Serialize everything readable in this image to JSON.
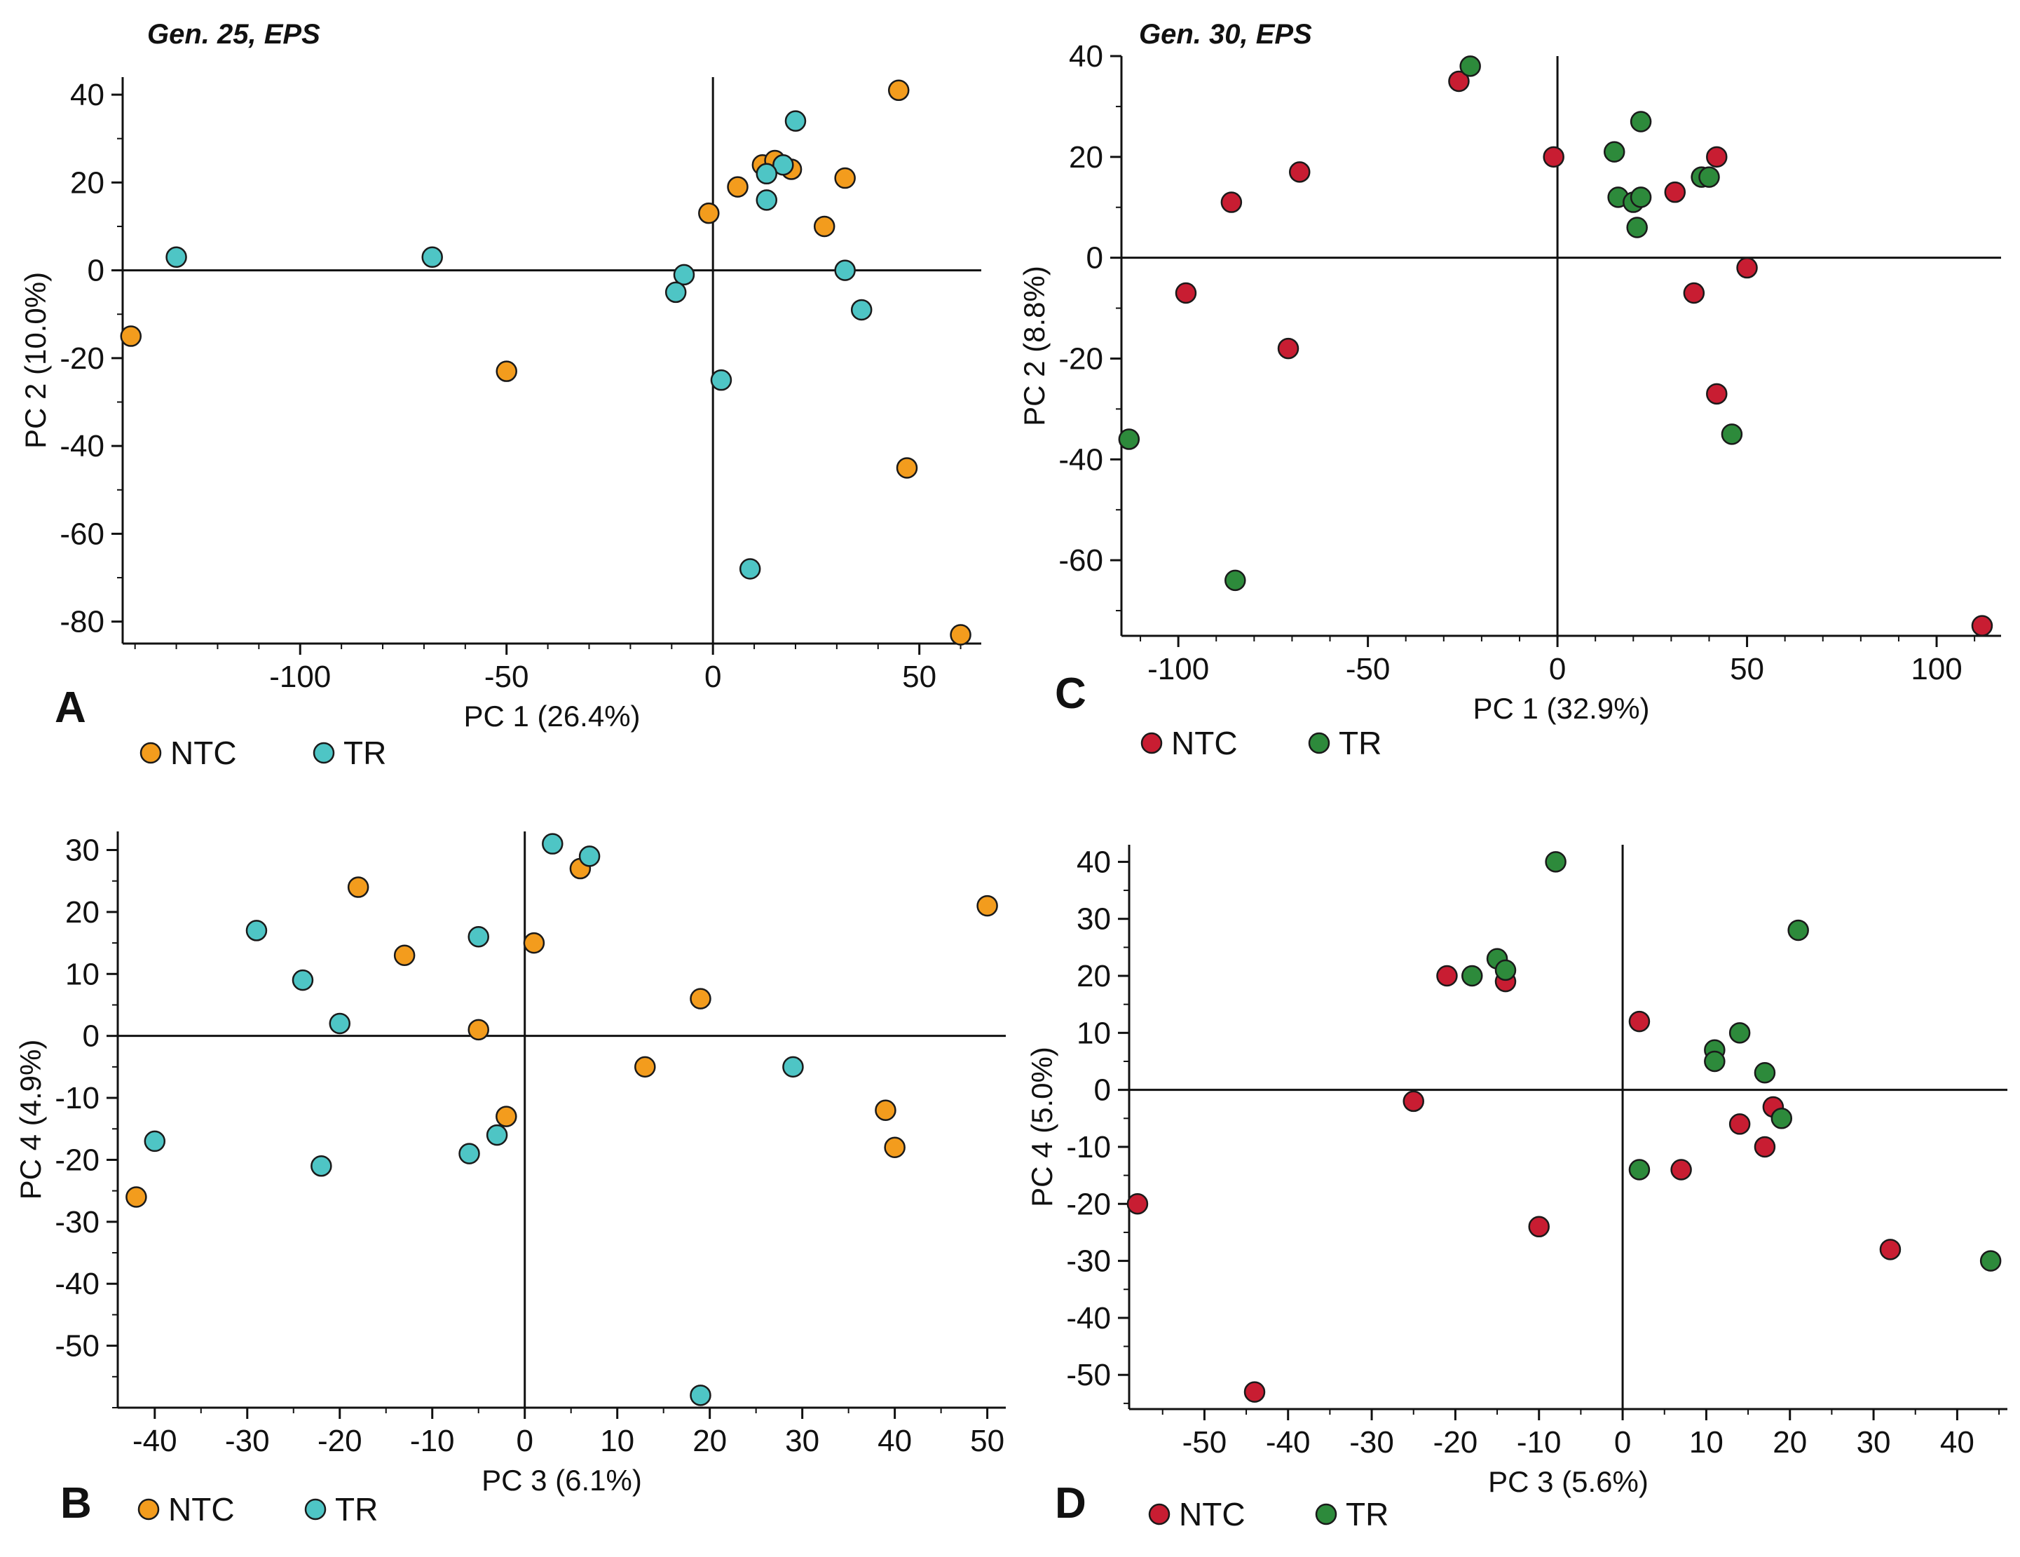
{
  "figure": {
    "panels": [
      "A",
      "B",
      "C",
      "D"
    ]
  },
  "chart_data": [
    {
      "id": "A",
      "type": "scatter",
      "title": "Gen. 25, EPS",
      "xlabel": "PC 1 (26.4%)",
      "ylabel": "PC 2 (10.0%)",
      "xlim": [
        -143,
        65
      ],
      "ylim": [
        -85,
        44
      ],
      "xticks": [
        -100,
        -50,
        0,
        50
      ],
      "yticks": [
        40,
        20,
        0,
        -20,
        -40,
        -60,
        -80
      ],
      "minor_step": 10,
      "grid": false,
      "legend_position": "bottom-left",
      "series": [
        {
          "name": "NTC",
          "color": "#f39c1d",
          "points": [
            [
              -141,
              -15
            ],
            [
              -50,
              -23
            ],
            [
              -1,
              13
            ],
            [
              6,
              19
            ],
            [
              12,
              24
            ],
            [
              15,
              25
            ],
            [
              19,
              23
            ],
            [
              32,
              21
            ],
            [
              27,
              10
            ],
            [
              45,
              41
            ],
            [
              47,
              -45
            ],
            [
              60,
              -83
            ]
          ]
        },
        {
          "name": "TR",
          "color": "#4ec5c5",
          "points": [
            [
              -130,
              3
            ],
            [
              -68,
              3
            ],
            [
              -7,
              -1
            ],
            [
              -9,
              -5
            ],
            [
              20,
              34
            ],
            [
              17,
              24
            ],
            [
              13,
              22
            ],
            [
              13,
              16
            ],
            [
              32,
              0
            ],
            [
              36,
              -9
            ],
            [
              2,
              -25
            ],
            [
              9,
              -68
            ]
          ]
        }
      ]
    },
    {
      "id": "B",
      "type": "scatter",
      "title": "",
      "xlabel": "PC 3 (6.1%)",
      "ylabel": "PC 4 (4.9%)",
      "xlim": [
        -44,
        52
      ],
      "ylim": [
        -60,
        33
      ],
      "xticks": [
        -40,
        -30,
        -20,
        -10,
        0,
        10,
        20,
        30,
        40,
        50
      ],
      "yticks": [
        30,
        20,
        10,
        0,
        -10,
        -20,
        -30,
        -40,
        -50
      ],
      "minor_step": 5,
      "grid": false,
      "legend_position": "bottom-left",
      "series": [
        {
          "name": "NTC",
          "color": "#f39c1d",
          "points": [
            [
              -18,
              24
            ],
            [
              -13,
              13
            ],
            [
              -5,
              1
            ],
            [
              1,
              15
            ],
            [
              6,
              27
            ],
            [
              19,
              6
            ],
            [
              13,
              -5
            ],
            [
              -2,
              -13
            ],
            [
              39,
              -12
            ],
            [
              40,
              -18
            ],
            [
              -42,
              -26
            ],
            [
              50,
              21
            ]
          ]
        },
        {
          "name": "TR",
          "color": "#4ec5c5",
          "points": [
            [
              -29,
              17
            ],
            [
              -24,
              9
            ],
            [
              -20,
              2
            ],
            [
              -5,
              16
            ],
            [
              3,
              31
            ],
            [
              7,
              29
            ],
            [
              -40,
              -17
            ],
            [
              -22,
              -21
            ],
            [
              -6,
              -19
            ],
            [
              -3,
              -16
            ],
            [
              29,
              -5
            ],
            [
              19,
              -58
            ]
          ]
        }
      ]
    },
    {
      "id": "C",
      "type": "scatter",
      "title": "Gen. 30, EPS",
      "xlabel": "PC 1 (32.9%)",
      "ylabel": "PC 2 (8.8%)",
      "xlim": [
        -115,
        117
      ],
      "ylim": [
        -75,
        40
      ],
      "xticks": [
        -100,
        -50,
        0,
        50,
        100
      ],
      "yticks": [
        40,
        20,
        0,
        -20,
        -40,
        -60
      ],
      "minor_step": 10,
      "grid": false,
      "legend_position": "bottom-left",
      "series": [
        {
          "name": "NTC",
          "color": "#c81d32",
          "points": [
            [
              -26,
              35
            ],
            [
              -1,
              20
            ],
            [
              -68,
              17
            ],
            [
              -86,
              11
            ],
            [
              -98,
              -7
            ],
            [
              -71,
              -18
            ],
            [
              31,
              13
            ],
            [
              42,
              20
            ],
            [
              50,
              -2
            ],
            [
              36,
              -7
            ],
            [
              42,
              -27
            ],
            [
              112,
              -73
            ]
          ]
        },
        {
          "name": "TR",
          "color": "#2d8a3b",
          "points": [
            [
              -23,
              38
            ],
            [
              15,
              21
            ],
            [
              22,
              27
            ],
            [
              16,
              12
            ],
            [
              20,
              11
            ],
            [
              22,
              12
            ],
            [
              21,
              6
            ],
            [
              38,
              16
            ],
            [
              40,
              16
            ],
            [
              46,
              -35
            ],
            [
              -113,
              -36
            ],
            [
              -85,
              -64
            ]
          ]
        }
      ]
    },
    {
      "id": "D",
      "type": "scatter",
      "title": "",
      "xlabel": "PC 3 (5.6%)",
      "ylabel": "PC 4 (5.0%)",
      "xlim": [
        -59,
        46
      ],
      "ylim": [
        -56,
        43
      ],
      "xticks": [
        -50,
        -40,
        -30,
        -20,
        -10,
        0,
        10,
        20,
        30,
        40
      ],
      "yticks": [
        40,
        30,
        20,
        10,
        0,
        -10,
        -20,
        -30,
        -40,
        -50
      ],
      "minor_step": 5,
      "grid": false,
      "legend_position": "bottom-left",
      "series": [
        {
          "name": "NTC",
          "color": "#c81d32",
          "points": [
            [
              -21,
              20
            ],
            [
              -14,
              19
            ],
            [
              -25,
              -2
            ],
            [
              -10,
              -24
            ],
            [
              2,
              12
            ],
            [
              7,
              -14
            ],
            [
              14,
              -6
            ],
            [
              17,
              -10
            ],
            [
              18,
              -3
            ],
            [
              32,
              -28
            ],
            [
              -58,
              -20
            ],
            [
              -44,
              -53
            ]
          ]
        },
        {
          "name": "TR",
          "color": "#2d8a3b",
          "points": [
            [
              -8,
              40
            ],
            [
              -18,
              20
            ],
            [
              -15,
              23
            ],
            [
              -14,
              21
            ],
            [
              21,
              28
            ],
            [
              11,
              7
            ],
            [
              11,
              5
            ],
            [
              14,
              10
            ],
            [
              17,
              3
            ],
            [
              19,
              -5
            ],
            [
              2,
              -14
            ],
            [
              44,
              -30
            ]
          ]
        }
      ]
    }
  ]
}
